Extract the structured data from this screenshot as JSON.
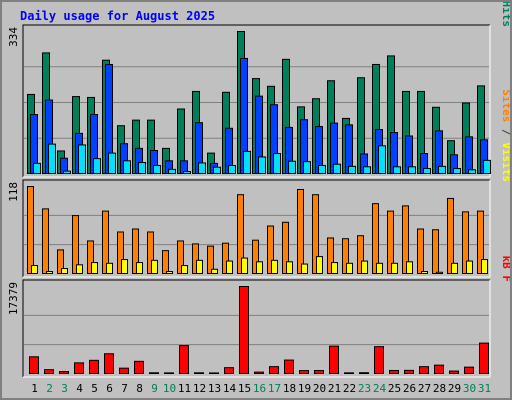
{
  "chart_data": [
    {
      "type": "bar",
      "title": "Daily usage for August 2025",
      "ymax_label": "334",
      "right_label": [
        {
          "text": "Pages",
          "color": "#00e0ff"
        },
        {
          "text": " / ",
          "color": "#404040"
        },
        {
          "text": "Files",
          "color": "#0040ff"
        },
        {
          "text": " / ",
          "color": "#404040"
        },
        {
          "text": "Hits",
          "color": "#008060"
        }
      ],
      "categories": [
        "1",
        "2",
        "3",
        "4",
        "5",
        "6",
        "7",
        "8",
        "9",
        "10",
        "11",
        "12",
        "13",
        "14",
        "15",
        "16",
        "17",
        "18",
        "19",
        "20",
        "21",
        "22",
        "23",
        "24",
        "25",
        "26",
        "27",
        "28",
        "29",
        "30",
        "31"
      ],
      "weekend_days": [
        "2",
        "3",
        "9",
        "10",
        "16",
        "17",
        "23",
        "24",
        "30",
        "31"
      ],
      "ylim": [
        0,
        334
      ],
      "series": [
        {
          "name": "Hits",
          "color": "#00805a",
          "values": [
            187,
            284,
            55,
            182,
            180,
            267,
            114,
            127,
            127,
            61,
            153,
            194,
            50,
            192,
            334,
            224,
            206,
            269,
            158,
            177,
            219,
            131,
            226,
            257,
            277,
            194,
            194,
            157,
            79,
            167,
            207
          ]
        },
        {
          "name": "Files",
          "color": "#0040ff",
          "values": [
            140,
            174,
            38,
            96,
            140,
            257,
            72,
            61,
            56,
            32,
            32,
            121,
            26,
            108,
            271,
            183,
            163,
            110,
            128,
            112,
            120,
            116,
            48,
            105,
            98,
            90,
            49,
            102,
            46,
            88,
            81
          ]
        },
        {
          "name": "Pages",
          "color": "#00e0ff",
          "values": [
            26,
            71,
            8,
            69,
            37,
            50,
            32,
            28,
            21,
            12,
            7,
            27,
            17,
            21,
            54,
            41,
            49,
            31,
            30,
            21,
            24,
            19,
            18,
            67,
            18,
            18,
            14,
            19,
            14,
            11,
            33
          ]
        }
      ]
    },
    {
      "type": "bar",
      "ymax_label": "118",
      "right_label": [
        {
          "text": "Sites",
          "color": "#ff8000"
        },
        {
          "text": " / ",
          "color": "#404040"
        },
        {
          "text": "Visits",
          "color": "#ffff00"
        }
      ],
      "categories": [
        "1",
        "2",
        "3",
        "4",
        "5",
        "6",
        "7",
        "8",
        "9",
        "10",
        "11",
        "12",
        "13",
        "14",
        "15",
        "16",
        "17",
        "18",
        "19",
        "20",
        "21",
        "22",
        "23",
        "24",
        "25",
        "26",
        "27",
        "28",
        "29",
        "30",
        "31"
      ],
      "ylim": [
        0,
        118
      ],
      "series": [
        {
          "name": "Sites",
          "color": "#ff8000",
          "values": [
            118,
            88,
            33,
            79,
            45,
            85,
            57,
            61,
            57,
            32,
            45,
            41,
            38,
            42,
            107,
            46,
            65,
            70,
            114,
            107,
            49,
            48,
            52,
            95,
            85,
            92,
            61,
            60,
            102,
            84,
            85
          ]
        },
        {
          "name": "Visits",
          "color": "#ffff00",
          "values": [
            12,
            4,
            8,
            13,
            16,
            15,
            20,
            16,
            19,
            4,
            12,
            19,
            7,
            18,
            22,
            17,
            19,
            17,
            14,
            24,
            16,
            15,
            18,
            15,
            15,
            17,
            4,
            3,
            15,
            18,
            20
          ]
        }
      ]
    },
    {
      "type": "bar",
      "ymax_label": "17379",
      "right_label": [
        {
          "text": "kB F",
          "color": "#ff0000"
        }
      ],
      "categories": [
        "1",
        "2",
        "3",
        "4",
        "5",
        "6",
        "7",
        "8",
        "9",
        "10",
        "11",
        "12",
        "13",
        "14",
        "15",
        "16",
        "17",
        "18",
        "19",
        "20",
        "21",
        "22",
        "23",
        "24",
        "25",
        "26",
        "27",
        "28",
        "29",
        "30",
        "31"
      ],
      "ylim": [
        0,
        17379
      ],
      "series": [
        {
          "name": "kB F",
          "color": "#ff0000",
          "values": [
            3500,
            950,
            580,
            2300,
            2800,
            4100,
            1250,
            2600,
            340,
            320,
            5700,
            340,
            310,
            1350,
            17379,
            470,
            1550,
            2850,
            770,
            780,
            5600,
            330,
            360,
            5500,
            800,
            820,
            1550,
            1850,
            680,
            1450,
            6200
          ]
        }
      ]
    }
  ]
}
